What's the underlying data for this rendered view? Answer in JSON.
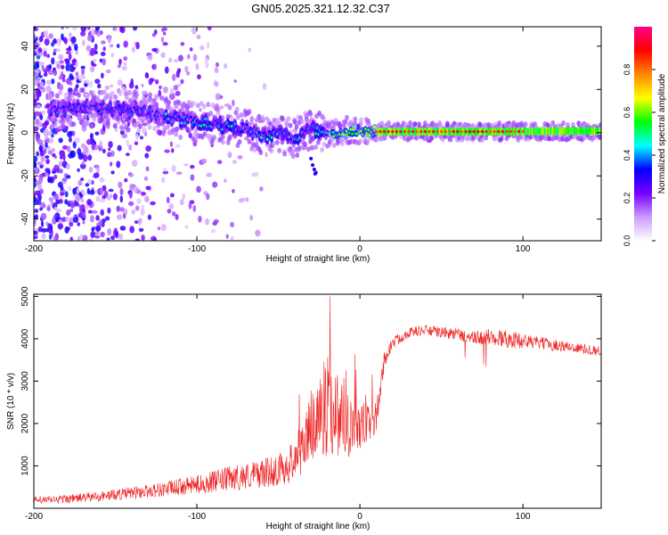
{
  "figure": {
    "title": "GN05.2025.321.12.32.C37"
  },
  "chart_data": [
    {
      "type": "heatmap",
      "title": "GN05.2025.321.12.32.C37",
      "xlabel": "Height of straight line (km)",
      "ylabel": "Frequency (Hz)",
      "xlim": [
        -200,
        148
      ],
      "ylim": [
        -50,
        49
      ],
      "x_ticks": [
        -200,
        -100,
        0,
        100
      ],
      "x_tick_labels": [
        "-200",
        "-100",
        "0",
        "100"
      ],
      "y_ticks": [
        -40,
        -20,
        0,
        20,
        40
      ],
      "y_tick_labels": [
        "-40",
        "-20",
        "0",
        "20",
        "40"
      ],
      "colorbar": {
        "label": "Normalized spectral amplitude",
        "range": [
          0,
          1
        ],
        "ticks": [
          0,
          0.2,
          0.4,
          0.6,
          0.8
        ],
        "tick_labels": [
          "0.0",
          "0.2",
          "0.4",
          "0.6",
          "0.8"
        ],
        "colors": [
          "#ffffff",
          "#cc99ff",
          "#7700ff",
          "#0000ff",
          "#00ffff",
          "#00ff00",
          "#ffff00",
          "#ff8800",
          "#ff0000",
          "#ff0088"
        ]
      },
      "ridge": {
        "description_x": [
          -190,
          -170,
          -150,
          -130,
          -110,
          -90,
          -70,
          -60,
          -50,
          -40,
          -30,
          -20,
          -10,
          0,
          10,
          30,
          60,
          90,
          120,
          148
        ],
        "description_freq": [
          10,
          12,
          11,
          9,
          6,
          4,
          2,
          -2,
          0,
          -3,
          2,
          -1,
          1,
          1,
          0.5,
          0.5,
          0.5,
          0.5,
          0.7,
          0.8
        ]
      },
      "grid": false
    },
    {
      "type": "line",
      "xlabel": "Height of straight line (km)",
      "ylabel": "SNR (10 * v/v)",
      "xlim": [
        -200,
        148
      ],
      "ylim": [
        0,
        5050
      ],
      "x_ticks": [
        -200,
        -100,
        0,
        100
      ],
      "x_tick_labels": [
        "-200",
        "-100",
        "0",
        "100"
      ],
      "y_ticks": [
        1000,
        2000,
        3000,
        4000,
        5000
      ],
      "y_tick_labels": [
        "1000",
        "2000",
        "3000",
        "4000",
        "5000"
      ],
      "series": [
        {
          "name": "SNR",
          "color": "#ee2222",
          "x": [
            -200,
            -180,
            -160,
            -140,
            -120,
            -100,
            -90,
            -80,
            -70,
            -60,
            -50,
            -40,
            -35,
            -30,
            -25,
            -20,
            -15,
            -10,
            -5,
            0,
            5,
            10,
            15,
            20,
            30,
            40,
            50,
            60,
            70,
            80,
            90,
            100,
            110,
            120,
            130,
            140,
            148
          ],
          "values": [
            180,
            220,
            280,
            360,
            450,
            560,
            620,
            700,
            760,
            820,
            900,
            1100,
            1500,
            1900,
            2200,
            2400,
            2300,
            2200,
            2000,
            1900,
            2000,
            2100,
            3500,
            3900,
            4150,
            4200,
            4150,
            4100,
            4000,
            4050,
            4000,
            3950,
            3900,
            3850,
            3800,
            3750,
            3700
          ],
          "noise": [
            90,
            100,
            120,
            150,
            180,
            220,
            260,
            300,
            320,
            340,
            380,
            500,
            700,
            900,
            1100,
            1200,
            1100,
            1000,
            800,
            600,
            500,
            400,
            200,
            150,
            120,
            120,
            130,
            150,
            170,
            200,
            220,
            180,
            150,
            140,
            130,
            120,
            120
          ]
        }
      ],
      "grid": false
    }
  ]
}
